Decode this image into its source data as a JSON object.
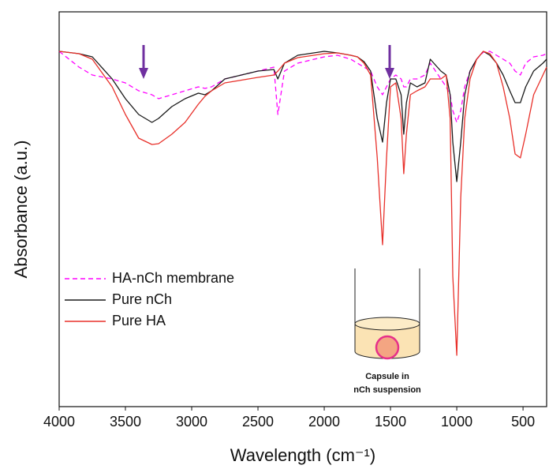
{
  "chart_data": {
    "type": "line",
    "xlabel": "Wavelength (cm⁻¹)",
    "ylabel": "Absorbance (a.u.)",
    "x": [
      4000,
      3850,
      3750,
      3600,
      3500,
      3400,
      3300,
      3250,
      3150,
      3050,
      2950,
      2900,
      2850,
      2750,
      2500,
      2380,
      2350,
      2300,
      2200,
      2000,
      1900,
      1800,
      1750,
      1700,
      1650,
      1600,
      1560,
      1530,
      1500,
      1460,
      1420,
      1400,
      1380,
      1350,
      1300,
      1240,
      1200,
      1120,
      1080,
      1050,
      1030,
      1000,
      970,
      940,
      900,
      850,
      800,
      750,
      700,
      650,
      600,
      560,
      520,
      480,
      420,
      350,
      322
    ],
    "xlim": [
      4000,
      322
    ],
    "xticks": [
      4000,
      3500,
      3000,
      2500,
      2000,
      1500,
      1000,
      500
    ],
    "ylim": [
      0,
      100
    ],
    "legend": "center left",
    "series": [
      {
        "name": "HA-nCh membrane",
        "color": "#ff00ff",
        "linestyle": "dashed",
        "values": [
          90,
          86,
          84,
          83,
          82,
          80,
          79,
          78,
          79,
          80,
          81,
          80.6,
          81,
          83,
          85,
          86,
          74,
          85,
          87,
          88.6,
          89,
          88,
          87,
          86,
          85,
          81,
          79,
          81,
          83,
          84,
          83,
          81,
          81,
          83,
          83,
          84,
          87,
          83,
          81,
          79,
          75,
          72,
          75,
          81,
          85,
          88,
          89.8,
          90,
          89,
          88,
          87,
          85,
          84,
          87,
          88.6,
          89,
          89.4
        ]
      },
      {
        "name": "Pure nCh",
        "color": "#1a1a1a",
        "linestyle": "solid",
        "values": [
          90,
          89.4,
          88.6,
          83,
          78,
          74,
          72,
          73,
          76,
          78,
          79.4,
          79,
          80,
          83,
          85,
          85.4,
          83,
          87,
          89,
          90,
          89.6,
          89,
          88.6,
          87.4,
          85,
          73,
          67,
          77,
          83,
          83,
          79,
          69,
          77,
          82,
          81,
          82,
          88,
          85,
          84,
          79,
          67,
          57,
          67,
          79,
          85,
          88,
          90,
          89,
          87,
          84,
          80,
          77,
          77,
          81,
          85,
          87,
          88
        ]
      },
      {
        "name": "Pure HA",
        "color": "#e8302a",
        "linestyle": "solid",
        "values": [
          90,
          89.4,
          88,
          81,
          74,
          68,
          66.4,
          66.6,
          69,
          72,
          76.6,
          78.6,
          80,
          82,
          83.4,
          84,
          85,
          87,
          88.4,
          89.4,
          89.6,
          89,
          88.6,
          87,
          84,
          63,
          41,
          63,
          81,
          82,
          73,
          59,
          69,
          79,
          80,
          81,
          83,
          83,
          84,
          73,
          33,
          13,
          53,
          73,
          83,
          88,
          90,
          89.4,
          87,
          81,
          73,
          64,
          63,
          69,
          79,
          84,
          86
        ]
      }
    ],
    "inset_label": [
      "Capsule in",
      "nCh suspension"
    ]
  }
}
